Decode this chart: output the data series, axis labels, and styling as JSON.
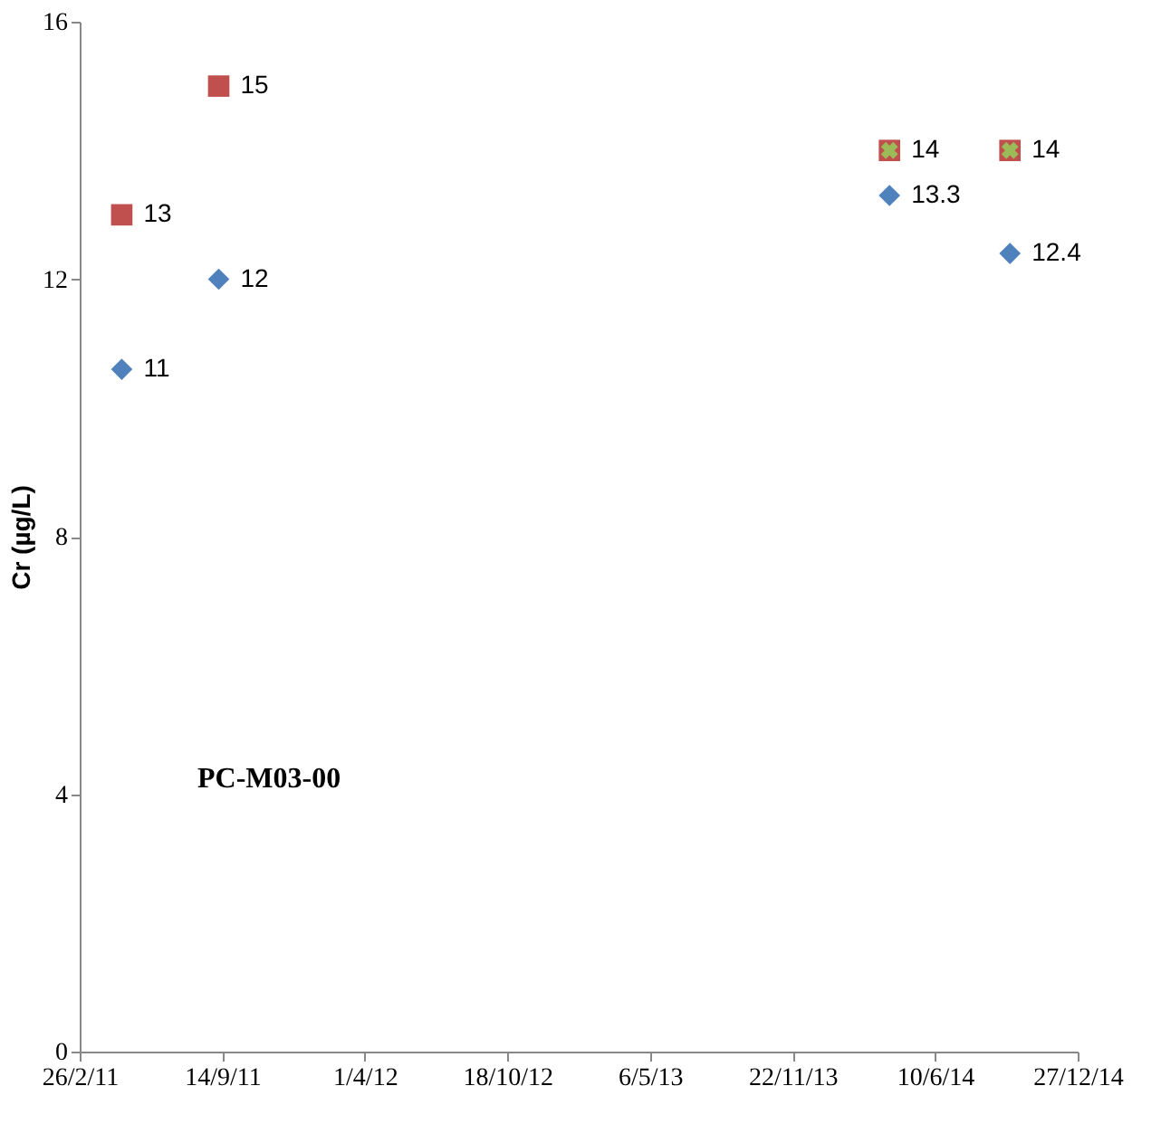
{
  "chart_data": {
    "type": "scatter",
    "ylabel": "Cr (µg/L)",
    "annotations": [
      "PC-M03-00"
    ],
    "xlim": [
      "2011-02-26",
      "2014-12-27"
    ],
    "xticks": [
      {
        "value": "2011-02-26",
        "label": "26/2/11"
      },
      {
        "value": "2011-09-14",
        "label": "14/9/11"
      },
      {
        "value": "2012-04-01",
        "label": "1/4/12"
      },
      {
        "value": "2012-10-18",
        "label": "18/10/12"
      },
      {
        "value": "2013-05-06",
        "label": "6/5/13"
      },
      {
        "value": "2013-11-22",
        "label": "22/11/13"
      },
      {
        "value": "2014-06-10",
        "label": "10/6/14"
      },
      {
        "value": "2014-12-27",
        "label": "27/12/14"
      }
    ],
    "ylim": [
      0,
      16
    ],
    "yticks": [
      0,
      4,
      8,
      12,
      16
    ],
    "grid": false,
    "series": [
      {
        "color": "#4f81bd",
        "marker": "diamond",
        "x": [
          "2011-04-26",
          "2011-09-09",
          "2014-04-07",
          "2014-09-23"
        ],
        "values": [
          10.6,
          12,
          13.3,
          12.4
        ],
        "value_labels": [
          "11",
          "12",
          "13.3",
          "12.4"
        ]
      },
      {
        "color": "#c0504d",
        "marker": "square",
        "x": [
          "2011-04-26",
          "2011-09-09",
          "2014-04-07",
          "2014-09-23"
        ],
        "values": [
          13,
          15,
          14,
          14
        ],
        "value_labels": [
          "13",
          "15",
          "14",
          "14"
        ]
      },
      {
        "color": "#9bbb59",
        "marker": "cross",
        "x": [
          "2014-04-07",
          "2014-09-23"
        ],
        "values": [
          14,
          14
        ]
      }
    ]
  }
}
